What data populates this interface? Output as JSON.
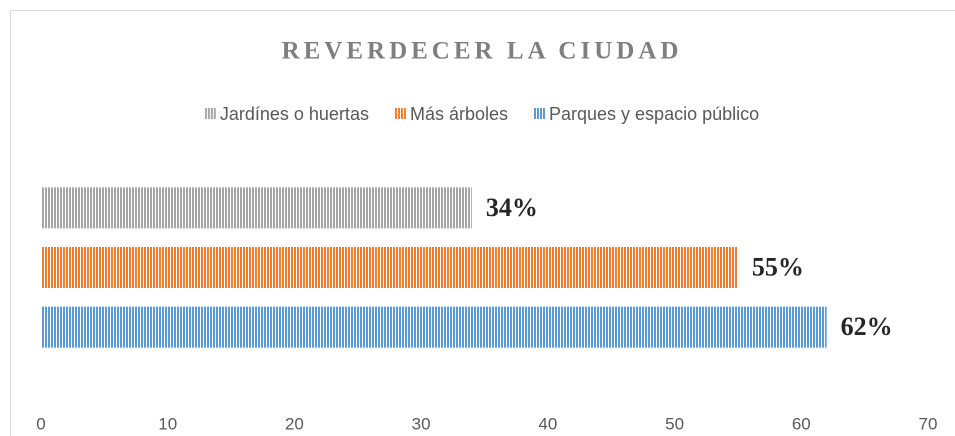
{
  "chart_data": {
    "type": "hbar",
    "title": "REVERDECER LA CIUDAD",
    "categories": [
      null
    ],
    "series": [
      {
        "name": "Jardínes o huertas",
        "color": "#a5a5a5",
        "values": [
          34
        ],
        "value_labels": [
          "34%"
        ]
      },
      {
        "name": "Más árboles",
        "color": "#ed7d31",
        "values": [
          55
        ],
        "value_labels": [
          "55%"
        ]
      },
      {
        "name": "Parques y espacio público",
        "color": "#5b9bd5",
        "values": [
          62
        ],
        "value_labels": [
          "62%"
        ]
      }
    ],
    "xlim": [
      0,
      70
    ],
    "xticks": [
      0,
      10,
      20,
      30,
      40,
      50,
      60,
      70
    ],
    "grid": false,
    "legend": "top"
  }
}
